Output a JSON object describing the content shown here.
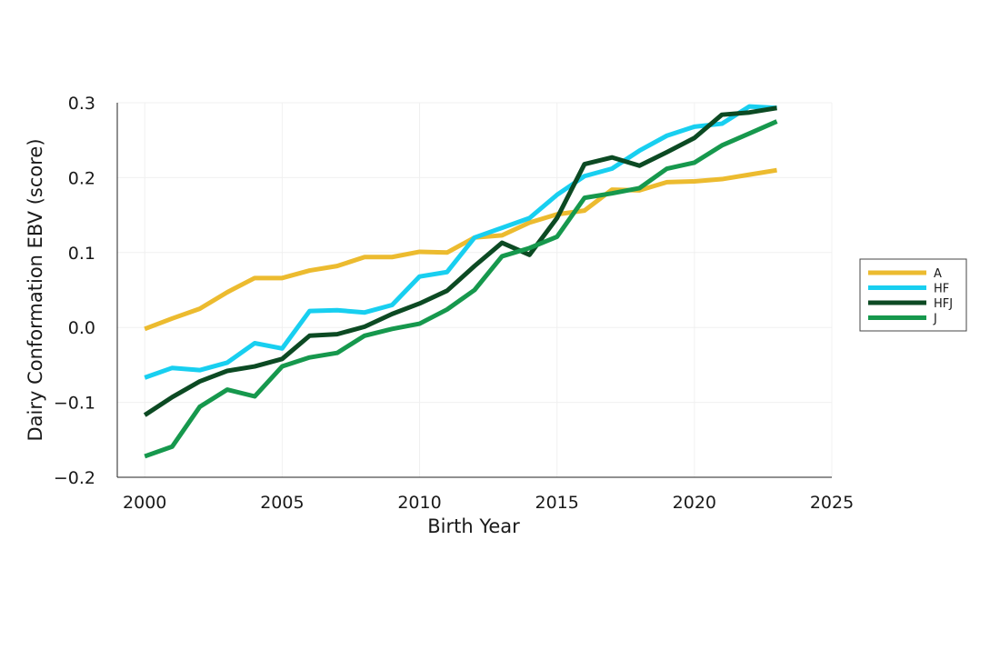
{
  "chart_data": {
    "type": "line",
    "xlabel": "Birth Year",
    "ylabel": "Dairy Conformation EBV (score)",
    "xlim": [
      1999,
      2025
    ],
    "ylim": [
      -0.2,
      0.3
    ],
    "xticks": [
      "2000",
      "2005",
      "2010",
      "2015",
      "2020",
      "2025"
    ],
    "yticks": [
      "−0.2",
      "−0.1",
      "0.0",
      "0.1",
      "0.2",
      "0.3"
    ],
    "grid": true,
    "legend_position": "right",
    "x": [
      2000,
      2001,
      2002,
      2003,
      2004,
      2005,
      2006,
      2007,
      2008,
      2009,
      2010,
      2011,
      2012,
      2013,
      2014,
      2015,
      2016,
      2017,
      2018,
      2019,
      2020,
      2021,
      2022,
      2023
    ],
    "series": [
      {
        "name": "A",
        "color": "#ECBB2F",
        "values": [
          -0.002,
          0.012,
          0.025,
          0.047,
          0.066,
          0.066,
          0.076,
          0.082,
          0.094,
          0.094,
          0.101,
          0.1,
          0.12,
          0.123,
          0.14,
          0.151,
          0.156,
          0.184,
          0.183,
          0.194,
          0.195,
          0.198,
          0.204,
          0.21
        ]
      },
      {
        "name": "HF",
        "color": "#18CFF0",
        "values": [
          -0.067,
          -0.054,
          -0.057,
          -0.047,
          -0.021,
          -0.028,
          0.022,
          0.023,
          0.02,
          0.03,
          0.068,
          0.074,
          0.12,
          0.133,
          0.146,
          0.177,
          0.202,
          0.212,
          0.236,
          0.256,
          0.268,
          0.272,
          0.295,
          0.293
        ]
      },
      {
        "name": "HFJ",
        "color": "#0C4A23",
        "values": [
          -0.117,
          -0.093,
          -0.072,
          -0.058,
          -0.052,
          -0.042,
          -0.011,
          -0.009,
          0.001,
          0.018,
          0.032,
          0.049,
          0.082,
          0.113,
          0.097,
          0.146,
          0.218,
          0.227,
          0.216,
          0.234,
          0.253,
          0.284,
          0.287,
          0.293
        ]
      },
      {
        "name": "J",
        "color": "#16984D",
        "values": [
          -0.172,
          -0.159,
          -0.106,
          -0.083,
          -0.092,
          -0.052,
          -0.04,
          -0.034,
          -0.011,
          -0.002,
          0.005,
          0.024,
          0.05,
          0.095,
          0.106,
          0.121,
          0.173,
          0.179,
          0.186,
          0.212,
          0.22,
          0.243,
          0.259,
          0.275
        ]
      }
    ]
  }
}
